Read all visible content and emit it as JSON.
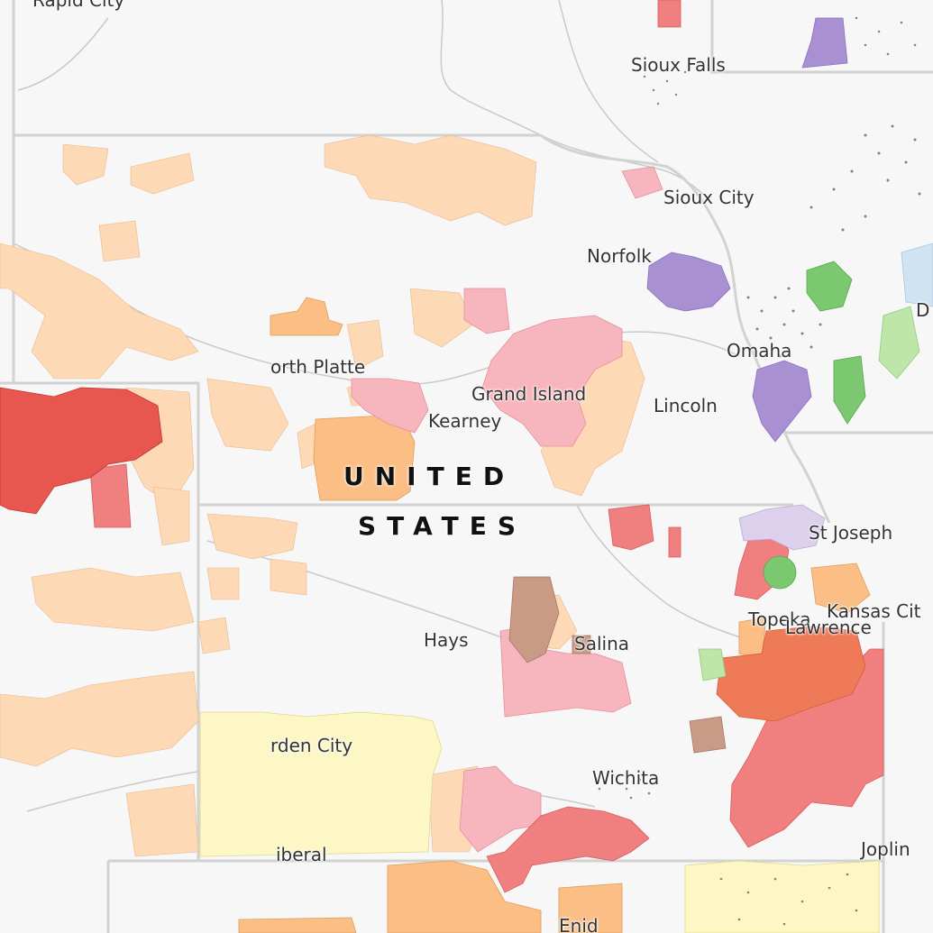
{
  "map": {
    "country_label": [
      "UNITED",
      "STATES"
    ],
    "cities": {
      "rapid_city": "Rapid City",
      "sioux_falls": "Sioux Falls",
      "sioux_city": "Sioux City",
      "norfolk": "Norfolk",
      "omaha": "Omaha",
      "d": "D",
      "north_platte": "orth Platte",
      "grand_island": "Grand Island",
      "kearney": "Kearney",
      "lincoln": "Lincoln",
      "st_joseph": "St Joseph",
      "topeka": "Topeka",
      "lawrence": "Lawrence",
      "kansas_city": "Kansas Cit",
      "hays": "Hays",
      "salina": "Salina",
      "garden_city": "rden City",
      "wichita": "Wichita",
      "liberal": "iberal",
      "joplin": "Joplin",
      "enid": "Enid"
    },
    "colors": {
      "background": "#f7f7f7",
      "state_border": "#d2d2d2",
      "river": "#c9c9c9",
      "peach": "#fdd9b5",
      "orange": "#fbbf85",
      "deep_orange": "#f4a261",
      "salmon": "#f08080",
      "red": "#e8574f",
      "pink": "#f7b6bd",
      "light_pink": "#f8c8cc",
      "purple": "#a890d3",
      "green": "#7cc870",
      "light_green": "#bde6a8",
      "brown": "#c99a86",
      "yellow": "#fcf7c5",
      "light_blue": "#cfe3f2",
      "lavender": "#ddd0ec",
      "coral": "#ee7a58"
    }
  }
}
